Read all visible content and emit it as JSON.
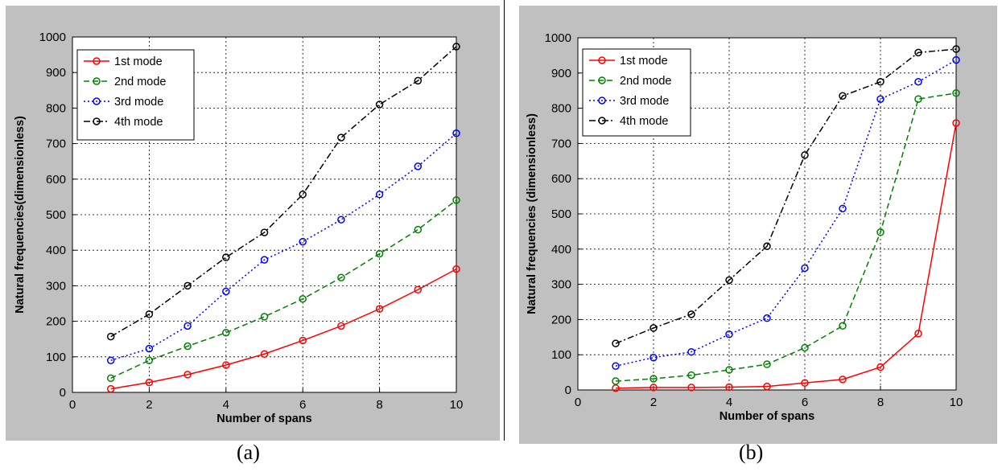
{
  "chart_data": [
    {
      "type": "line",
      "panel_label": "(a)",
      "xlabel": "Number of spans",
      "ylabel": "Natural frequencies(dimensionless)",
      "xlim": [
        0,
        10
      ],
      "ylim": [
        0,
        1000
      ],
      "xticks": [
        0,
        2,
        4,
        6,
        8,
        10
      ],
      "yticks": [
        0,
        100,
        200,
        300,
        400,
        500,
        600,
        700,
        800,
        900,
        1000
      ],
      "grid": true,
      "legend_position": "top-left",
      "x": [
        1,
        2,
        3,
        4,
        5,
        6,
        7,
        8,
        9,
        10
      ],
      "series": [
        {
          "name": "1st mode",
          "color": "#ff0000",
          "dash": "solid",
          "values": [
            10,
            28,
            50,
            77,
            108,
            146,
            187,
            235,
            289,
            347
          ]
        },
        {
          "name": "2nd mode",
          "color": "#008000",
          "dash": "dashed",
          "values": [
            40,
            90,
            130,
            168,
            213,
            263,
            323,
            390,
            458,
            541
          ]
        },
        {
          "name": "3rd mode",
          "color": "#0000ff",
          "dash": "dotted",
          "values": [
            90,
            123,
            187,
            284,
            373,
            424,
            486,
            557,
            636,
            729
          ]
        },
        {
          "name": "4th mode",
          "color": "#000000",
          "dash": "dashdot",
          "values": [
            157,
            220,
            300,
            380,
            450,
            557,
            717,
            810,
            877,
            973
          ]
        }
      ]
    },
    {
      "type": "line",
      "panel_label": "(b)",
      "xlabel": "Number of spans",
      "ylabel": "Natural frequencies (dimensionless)",
      "xlim": [
        0,
        10
      ],
      "ylim": [
        0,
        1000
      ],
      "xticks": [
        0,
        2,
        4,
        6,
        8,
        10
      ],
      "yticks": [
        0,
        100,
        200,
        300,
        400,
        500,
        600,
        700,
        800,
        900,
        1000
      ],
      "grid": true,
      "legend_position": "top-left",
      "x": [
        1,
        2,
        3,
        4,
        5,
        6,
        7,
        8,
        9,
        10
      ],
      "series": [
        {
          "name": "1st mode",
          "color": "#ff0000",
          "dash": "solid",
          "values": [
            5,
            7,
            7,
            8,
            10,
            20,
            30,
            65,
            160,
            758
          ]
        },
        {
          "name": "2nd mode",
          "color": "#008000",
          "dash": "dashed",
          "values": [
            25,
            32,
            42,
            57,
            73,
            120,
            182,
            448,
            826,
            843
          ]
        },
        {
          "name": "3rd mode",
          "color": "#0000ff",
          "dash": "dotted",
          "values": [
            68,
            92,
            108,
            158,
            204,
            346,
            515,
            826,
            875,
            937
          ]
        },
        {
          "name": "4th mode",
          "color": "#000000",
          "dash": "dashdot",
          "values": [
            132,
            176,
            215,
            312,
            408,
            667,
            835,
            875,
            958,
            968
          ]
        }
      ]
    }
  ]
}
